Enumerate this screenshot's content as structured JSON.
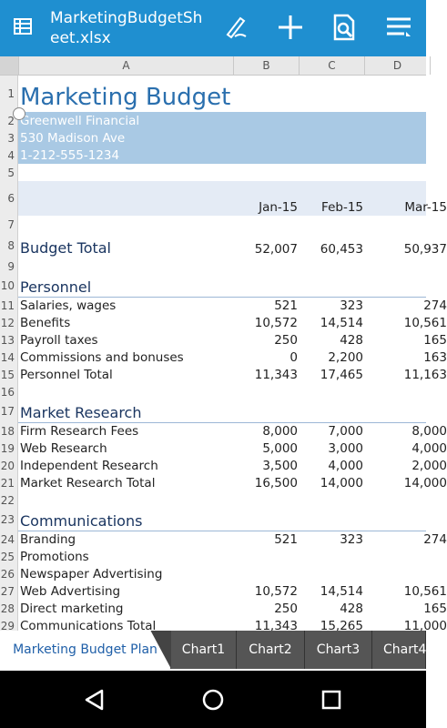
{
  "app": {
    "title": "MarketingBudgetSheet.xlsx"
  },
  "toolbar": {
    "icons": [
      "spreadsheet-list-icon",
      "pen-edit-icon",
      "plus-icon",
      "document-search-icon",
      "menu-icon"
    ]
  },
  "columns": [
    "A",
    "B",
    "C",
    "D"
  ],
  "rows": [
    {
      "n": "1",
      "a": "Marketing Budget",
      "b": "",
      "c": "",
      "d": ""
    },
    {
      "n": "2",
      "a": "Greenwell Financial",
      "b": "",
      "c": "",
      "d": ""
    },
    {
      "n": "3",
      "a": "530 Madison Ave",
      "b": "",
      "c": "",
      "d": ""
    },
    {
      "n": "4",
      "a": "1-212-555-1234",
      "b": "",
      "c": "",
      "d": ""
    },
    {
      "n": "5",
      "a": "",
      "b": "",
      "c": "",
      "d": ""
    },
    {
      "n": "6",
      "a": "",
      "b": "Jan-15",
      "c": "Feb-15",
      "d": "Mar-15"
    },
    {
      "n": "7",
      "a": "",
      "b": "",
      "c": "",
      "d": ""
    },
    {
      "n": "8",
      "a": "Budget Total",
      "b": "52,007",
      "c": "60,453",
      "d": "50,937"
    },
    {
      "n": "9",
      "a": "",
      "b": "",
      "c": "",
      "d": ""
    },
    {
      "n": "10",
      "a": "Personnel",
      "b": "",
      "c": "",
      "d": ""
    },
    {
      "n": "11",
      "a": "Salaries, wages",
      "b": "521",
      "c": "323",
      "d": "274"
    },
    {
      "n": "12",
      "a": "Benefits",
      "b": "10,572",
      "c": "14,514",
      "d": "10,561"
    },
    {
      "n": "13",
      "a": "Payroll taxes",
      "b": "250",
      "c": "428",
      "d": "165"
    },
    {
      "n": "14",
      "a": "Commissions and bonuses",
      "b": "0",
      "c": "2,200",
      "d": "163"
    },
    {
      "n": "15",
      "a": "Personnel Total",
      "b": "11,343",
      "c": "17,465",
      "d": "11,163"
    },
    {
      "n": "16",
      "a": "",
      "b": "",
      "c": "",
      "d": ""
    },
    {
      "n": "17",
      "a": "Market Research",
      "b": "",
      "c": "",
      "d": ""
    },
    {
      "n": "18",
      "a": "Firm Research Fees",
      "b": "8,000",
      "c": "7,000",
      "d": "8,000"
    },
    {
      "n": "19",
      "a": "Web Research",
      "b": "5,000",
      "c": "3,000",
      "d": "4,000"
    },
    {
      "n": "20",
      "a": "Independent Research",
      "b": "3,500",
      "c": "4,000",
      "d": "2,000"
    },
    {
      "n": "21",
      "a": "Market Research Total",
      "b": "16,500",
      "c": "14,000",
      "d": "14,000"
    },
    {
      "n": "22",
      "a": "",
      "b": "",
      "c": "",
      "d": ""
    },
    {
      "n": "23",
      "a": "Communications",
      "b": "",
      "c": "",
      "d": ""
    },
    {
      "n": "24",
      "a": "Branding",
      "b": "521",
      "c": "323",
      "d": "274"
    },
    {
      "n": "25",
      "a": "Promotions",
      "b": "",
      "c": "",
      "d": ""
    },
    {
      "n": "26",
      "a": "Newspaper Advertising",
      "b": "",
      "c": "",
      "d": ""
    },
    {
      "n": "27",
      "a": "Web Advertising",
      "b": "10,572",
      "c": "14,514",
      "d": "10,561"
    },
    {
      "n": "28",
      "a": "Direct marketing",
      "b": "250",
      "c": "428",
      "d": "165"
    },
    {
      "n": "29",
      "a": "Communications Total",
      "b": "11,343",
      "c": "15,265",
      "d": "11,000"
    }
  ],
  "sheet_tabs": [
    "Marketing Budget Plan",
    "Chart1",
    "Chart2",
    "Chart3",
    "Chart4"
  ],
  "nav": {
    "icons": [
      "back-icon",
      "home-icon",
      "recents-icon"
    ]
  },
  "colors": {
    "appbar": "#1f8fd0",
    "selection": "#a9c9e4",
    "title_text": "#2a6fae",
    "active_tab_text": "#1f5fa8"
  }
}
